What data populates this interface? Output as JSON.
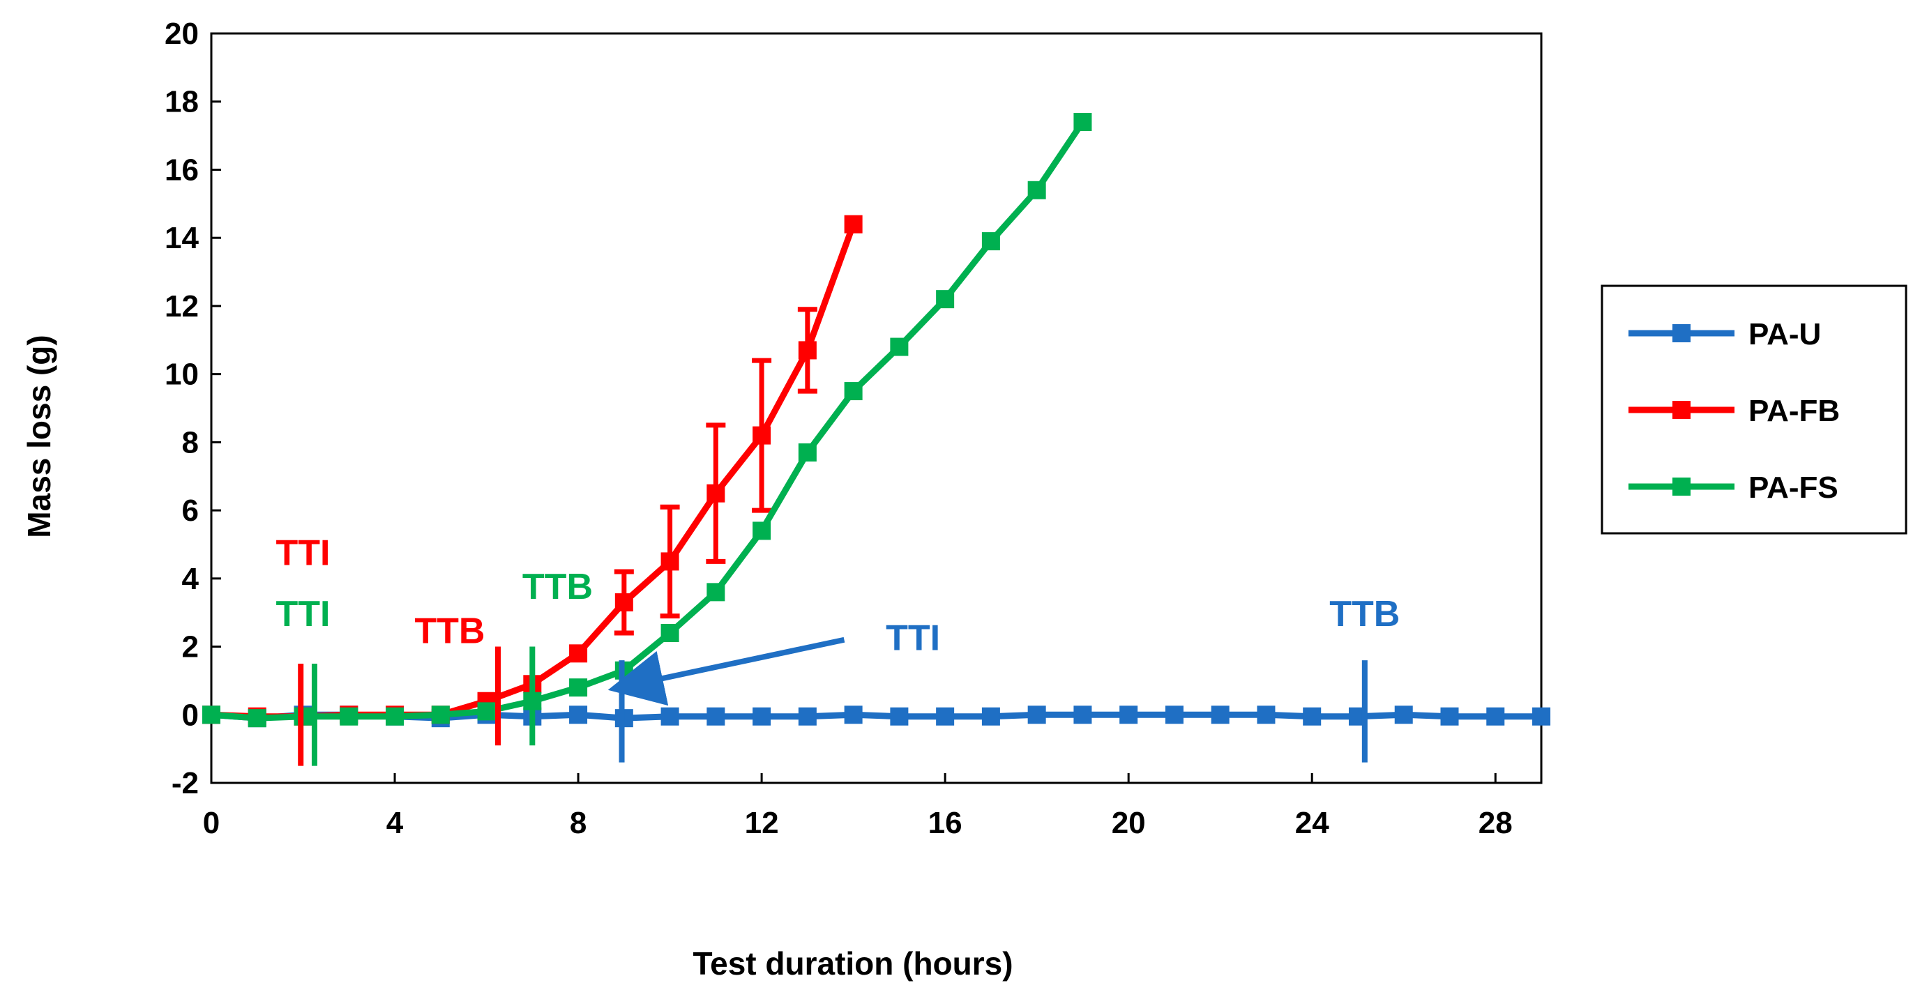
{
  "chart_data": {
    "type": "line",
    "title": "",
    "xlabel": "Test duration (hours)",
    "ylabel": "Mass loss (g)",
    "xlim": [
      0,
      29
    ],
    "ylim": [
      -2,
      20
    ],
    "xticks": [
      0,
      4,
      8,
      12,
      16,
      20,
      24,
      28
    ],
    "yticks": [
      -2,
      0,
      2,
      4,
      6,
      8,
      10,
      12,
      14,
      16,
      18,
      20
    ],
    "grid": false,
    "legend_position": "right",
    "series": [
      {
        "name": "PA-U",
        "color": "#1F6FC4",
        "x": [
          0,
          1,
          2,
          3,
          4,
          5,
          6,
          7,
          8,
          9,
          10,
          11,
          12,
          13,
          14,
          15,
          16,
          17,
          18,
          19,
          20,
          21,
          22,
          23,
          24,
          25,
          26,
          27,
          28,
          29
        ],
        "y": [
          0,
          -0.1,
          0,
          0,
          -0.05,
          -0.1,
          0,
          -0.05,
          0,
          -0.1,
          -0.05,
          -0.05,
          -0.05,
          -0.05,
          0,
          -0.05,
          -0.05,
          -0.05,
          0,
          0,
          0,
          0,
          0,
          0,
          -0.05,
          -0.05,
          0,
          -0.05,
          -0.05,
          -0.05
        ]
      },
      {
        "name": "PA-FB",
        "color": "#FF0000",
        "x": [
          0,
          1,
          2,
          3,
          4,
          5,
          6,
          7,
          8,
          9,
          10,
          11,
          12,
          13,
          14
        ],
        "y": [
          0,
          -0.05,
          -0.05,
          0,
          0,
          0,
          0.4,
          0.9,
          1.8,
          3.3,
          4.5,
          6.5,
          8.2,
          10.7,
          14.4
        ],
        "error": [
          0,
          0,
          0,
          0,
          0,
          0,
          0,
          0,
          0,
          0.9,
          1.6,
          2.0,
          2.2,
          1.2,
          0
        ]
      },
      {
        "name": "PA-FS",
        "color": "#00B050",
        "x": [
          0,
          1,
          2,
          3,
          4,
          5,
          6,
          7,
          8,
          9,
          10,
          11,
          12,
          13,
          14,
          15,
          16,
          17,
          18,
          19
        ],
        "y": [
          0,
          -0.1,
          -0.05,
          -0.05,
          -0.05,
          0,
          0.1,
          0.4,
          0.8,
          1.3,
          2.4,
          3.6,
          5.4,
          7.7,
          9.5,
          10.8,
          12.2,
          13.9,
          15.4,
          17.4
        ]
      }
    ],
    "markers": [
      {
        "label": "TTI",
        "series": "PA-FB",
        "x": 1.95,
        "y_range": [
          -1.5,
          1.5
        ],
        "label_x": 2.0,
        "label_y": 4.4
      },
      {
        "label": "TTI",
        "series": "PA-FS",
        "x": 2.25,
        "y_range": [
          -1.5,
          1.5
        ],
        "label_x": 2.0,
        "label_y": 2.6
      },
      {
        "label": "TTB",
        "series": "PA-FB",
        "x": 6.25,
        "y_range": [
          -0.9,
          2.0
        ],
        "label_x": 5.2,
        "label_y": 2.1
      },
      {
        "label": "TTB",
        "series": "PA-FS",
        "x": 7.0,
        "y_range": [
          -0.9,
          2.0
        ],
        "label_x": 7.55,
        "label_y": 3.4
      },
      {
        "label": "TTI",
        "series": "PA-U",
        "x": 8.95,
        "y_range": [
          -1.4,
          1.6
        ],
        "label_x": 15.3,
        "label_y": 1.9,
        "arrow_from": [
          13.8,
          2.2
        ],
        "arrow_to": [
          9.6,
          1.0
        ]
      },
      {
        "label": "TTB",
        "series": "PA-U",
        "x": 25.15,
        "y_range": [
          -1.4,
          1.6
        ],
        "label_x": 25.15,
        "label_y": 2.6
      }
    ]
  }
}
